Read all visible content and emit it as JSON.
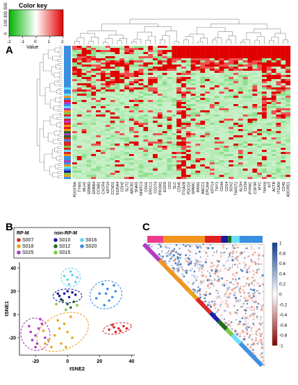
{
  "colors": {
    "green": "#33cc33",
    "lightgreen": "#ccf5cc",
    "red": "#dd0000",
    "white": "#ffffff",
    "panel_c_pos": "#1f5fa8",
    "panel_c_neg": "#c62828",
    "header_pink": "#ee3a8c",
    "header_orange": "#f0941d",
    "header_red": "#e02020",
    "header_navy": "#1a1aa0",
    "header_cyan": "#67e0ff",
    "header_blue": "#3b8fe0"
  },
  "panel_a": {
    "label": "A",
    "color_key": {
      "title": "Color key",
      "top_ticks": [
        "0",
        "100",
        "300",
        "500"
      ],
      "bottom_ticks": [
        "-2",
        "-1",
        "0",
        "1",
        "2"
      ],
      "xlabel": "Value"
    },
    "genes": [
      "PDGFRA",
      "TYMS",
      "MLH1",
      "ERBB2",
      "ERBB4",
      "CCNB1",
      "CXCR4",
      "KRT19",
      "CCND1",
      "S100A4",
      "CDH2",
      "SLIT2",
      "ABCB1",
      "SNAI1",
      "NFATC3",
      "CDH1",
      "ERCC1",
      "CD274",
      "PROM1",
      "EGFR",
      "CD2",
      "SLC",
      "CDH5",
      "ITGA2B",
      "PDCD1",
      "SPARC",
      "RRM1",
      "ABCC1",
      "EPCAM",
      "KRT14",
      "THY1",
      "CD44",
      "CD14",
      "SOX2",
      "TWIST2",
      "ALDH",
      "CD34",
      "PTPRC",
      "CSF3R",
      "MYC",
      "Nanog",
      "KIT",
      "ACTB",
      "ITGAM",
      "CD45",
      "ADGRE1"
    ]
  },
  "panel_b": {
    "label": "B",
    "legend": {
      "group1_title": "RP-M",
      "group1": [
        {
          "name": "S007",
          "color": "#d62728"
        },
        {
          "name": "S018",
          "color": "#e8a317"
        },
        {
          "name": "S025",
          "color": "#b03ac0"
        }
      ],
      "group2_title": "non-RP-M",
      "group2": [
        {
          "name": "S010",
          "color": "#1a1aa0"
        },
        {
          "name": "S012",
          "color": "#1e6b1e"
        },
        {
          "name": "S015",
          "color": "#7ac943"
        },
        {
          "name": "S016",
          "color": "#5fd0f0"
        },
        {
          "name": "S020",
          "color": "#3b8fe0"
        }
      ]
    },
    "xlabel": "tSNE2",
    "ylabel": "tSNE1",
    "xticks": [
      "-20",
      "0",
      "20",
      "40"
    ],
    "yticks": [
      "40",
      "20",
      "0",
      "-20"
    ]
  },
  "panel_c": {
    "label": "C",
    "scale_ticks": [
      "1",
      "0.8",
      "0.6",
      "0.4",
      "0.2",
      "0",
      "-0.2",
      "-0.4",
      "-0.6",
      "-0.8",
      "-1"
    ]
  },
  "chart_data": {
    "type": "scatter",
    "xlabel": "tSNE2",
    "ylabel": "tSNE1",
    "xlim": [
      -30,
      42
    ],
    "ylim": [
      -35,
      45
    ],
    "series": [
      {
        "name": "S007",
        "color": "#d62728",
        "points": [
          [
            26,
            -13
          ],
          [
            29,
            -11
          ],
          [
            32,
            -12
          ],
          [
            35,
            -10
          ],
          [
            30,
            -15
          ],
          [
            33,
            -14
          ],
          [
            37,
            -12
          ],
          [
            28,
            -9
          ]
        ]
      },
      {
        "name": "S018",
        "color": "#e8a317",
        "points": [
          [
            -12,
            -22
          ],
          [
            -8,
            -18
          ],
          [
            -5,
            -12
          ],
          [
            -2,
            -8
          ],
          [
            -10,
            -28
          ],
          [
            -4,
            -25
          ],
          [
            0,
            -15
          ],
          [
            -15,
            -14
          ],
          [
            -6,
            -5
          ],
          [
            3,
            -20
          ],
          [
            -1,
            -28
          ],
          [
            -14,
            -25
          ],
          [
            2,
            -2
          ]
        ]
      },
      {
        "name": "S025",
        "color": "#b03ac0",
        "points": [
          [
            -23,
            -15
          ],
          [
            -20,
            -18
          ],
          [
            -18,
            -12
          ],
          [
            -22,
            -22
          ],
          [
            -16,
            -8
          ],
          [
            -19,
            -25
          ],
          [
            -14,
            -20
          ],
          [
            -24,
            -10
          ],
          [
            -17,
            -4
          ],
          [
            -20,
            -28
          ]
        ]
      },
      {
        "name": "S010",
        "color": "#1a1aa0",
        "points": [
          [
            -5,
            16
          ],
          [
            -2,
            18
          ],
          [
            1,
            15
          ],
          [
            3,
            19
          ],
          [
            -4,
            13
          ],
          [
            5,
            17
          ],
          [
            0,
            20
          ],
          [
            -6,
            18
          ]
        ]
      },
      {
        "name": "S012",
        "color": "#1e6b1e",
        "points": [
          [
            -3,
            12
          ],
          [
            0,
            9
          ],
          [
            4,
            11
          ],
          [
            2,
            6
          ]
        ]
      },
      {
        "name": "S015",
        "color": "#7ac943",
        "points": [
          [
            -7,
            9
          ],
          [
            6,
            8
          ],
          [
            -1,
            4
          ]
        ]
      },
      {
        "name": "S016",
        "color": "#5fd0f0",
        "points": [
          [
            0,
            30
          ],
          [
            3,
            34
          ],
          [
            5,
            28
          ],
          [
            2,
            37
          ],
          [
            -2,
            33
          ],
          [
            6,
            32
          ],
          [
            1,
            26
          ]
        ]
      },
      {
        "name": "S020",
        "color": "#3b8fe0",
        "points": [
          [
            20,
            18
          ],
          [
            25,
            22
          ],
          [
            28,
            15
          ],
          [
            22,
            26
          ],
          [
            30,
            20
          ],
          [
            26,
            12
          ],
          [
            23,
            8
          ],
          [
            29,
            25
          ],
          [
            18,
            14
          ],
          [
            24,
            18
          ]
        ]
      }
    ]
  }
}
